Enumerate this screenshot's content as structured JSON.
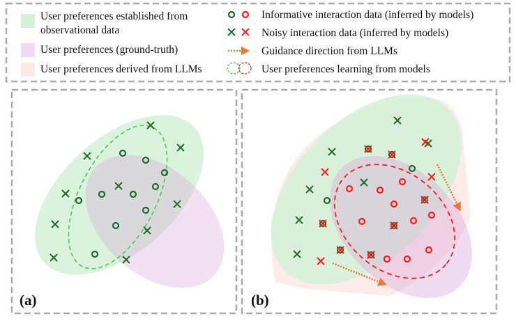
{
  "legend": {
    "items_left": [
      {
        "lines": [
          "User preferences established from",
          "observational data"
        ],
        "color": "#d5f2d8"
      },
      {
        "lines": [
          "User preferences (ground-truth)"
        ],
        "color": "#f1d9f1"
      },
      {
        "lines": [
          "User preferences derived from LLMs"
        ],
        "color": "#fde9e8"
      }
    ],
    "items_right": [
      {
        "label": "Informative interaction data (inferred by models)",
        "icon": "circle-markers-green-red"
      },
      {
        "label": "Noisy interaction data (inferred by models)",
        "icon": "cross-markers-green-red"
      },
      {
        "label": "Guidance direction from LLMs",
        "icon": "dotted-arrow"
      },
      {
        "label": "User preferences learning from models",
        "icon": "dashed-ellipses-green-red"
      }
    ]
  },
  "panels": {
    "a": {
      "label": "(a)"
    },
    "b": {
      "label": "(b)"
    }
  },
  "colors": {
    "green_marker": "#1e6b2a",
    "red_marker": "#ff1a1a",
    "arrow": "#ee7733",
    "green_region": "#d5f2d8",
    "purple_region": "#efd4ef",
    "pink_region": "#fde9e8",
    "frame": "#aaaaaa"
  }
}
